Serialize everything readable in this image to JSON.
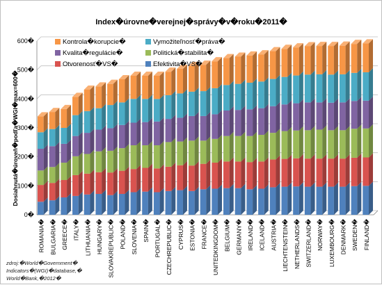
{
  "chart_data": {
    "type": "stacked-bar-3d",
    "title": "Index�úrovne�verejnej�správy�v�roku�2011�",
    "ylabel": "Dosiahnutá�úroveň�podľa�WGI�max=600�",
    "xlabel": "",
    "ylim": [
      0,
      600
    ],
    "yticks": [
      "0�",
      "100�",
      "200�",
      "300�",
      "400�",
      "500�",
      "600�"
    ],
    "ytick_values": [
      0,
      100,
      200,
      300,
      400,
      500,
      600
    ],
    "grid": true,
    "legend_position": "top-left-inside",
    "categories": [
      "ROMANIA�",
      "BULGARIA�",
      "GREECE�",
      "ITALY�",
      "LITHUANIA�",
      "HUNGARY�",
      "SLOVAKREPUBLIC�",
      "POLAND�",
      "SLOVENIA�",
      "SPAIN�",
      "PORTUGAL�",
      "CZECHREPUBLIC�",
      "CYPRUS�",
      "ESTONIA�",
      "FRANCE�",
      "UNITEDKINGDOM�",
      "BELGIUM�",
      "GERMANY�",
      "IRELAND�",
      "ICELAND�",
      "AUSTRIA�",
      "LIECHTENSTEIN�",
      "NETHERLANDS�",
      "SWITZERLAND�",
      "NORWAY�",
      "LUXEMBOURG�",
      "DENMARK�",
      "SWEDEN�",
      "FINLAND�"
    ],
    "series": [
      {
        "name": "Efektivita�VS�",
        "color": "#4f81bd",
        "values": [
          45,
          50,
          60,
          65,
          70,
          72,
          68,
          72,
          78,
          80,
          78,
          82,
          85,
          82,
          88,
          90,
          92,
          92,
          88,
          90,
          95,
          97,
          98,
          97,
          97,
          97,
          97,
          99,
          100
        ]
      },
      {
        "name": "Otvorenosť�VS�",
        "color": "#d9534f",
        "values": [
          58,
          60,
          60,
          72,
          72,
          75,
          78,
          80,
          80,
          82,
          82,
          84,
          86,
          88,
          88,
          90,
          92,
          92,
          94,
          94,
          96,
          96,
          97,
          97,
          97,
          97,
          97,
          98,
          98
        ]
      },
      {
        "name": "Politická�stabilita�",
        "color": "#9bbb59",
        "values": [
          50,
          55,
          60,
          65,
          68,
          72,
          75,
          78,
          82,
          78,
          80,
          85,
          82,
          86,
          80,
          82,
          88,
          88,
          90,
          92,
          92,
          96,
          96,
          98,
          100,
          98,
          98,
          100,
          100
        ]
      },
      {
        "name": "Kvalita�regulácie�",
        "color": "#8064a2",
        "values": [
          75,
          72,
          65,
          70,
          73,
          75,
          78,
          80,
          78,
          80,
          82,
          80,
          82,
          85,
          85,
          85,
          88,
          90,
          92,
          92,
          92,
          92,
          94,
          96,
          94,
          95,
          96,
          96,
          96
        ]
      },
      {
        "name": "Vymožiteľnosť�práva�",
        "color": "#4bacc6",
        "values": [
          57,
          59,
          55,
          72,
          75,
          74,
          80,
          78,
          82,
          80,
          78,
          82,
          84,
          84,
          86,
          90,
          88,
          90,
          92,
          92,
          94,
          95,
          96,
          96,
          97,
          97,
          97,
          97,
          98
        ]
      },
      {
        "name": "Kontrola�korupcie�",
        "color": "#f79646",
        "values": [
          55,
          59,
          65,
          63,
          74,
          75,
          73,
          80,
          80,
          80,
          80,
          81,
          85,
          89,
          91,
          93,
          93,
          94,
          94,
          94,
          96,
          97,
          97,
          98,
          98,
          99,
          99,
          100,
          100
        ]
      }
    ]
  },
  "legend": {
    "columns": [
      [
        "Kontrola�korupcie�",
        "Kvalita�regulácie�",
        "Otvorenosť�VS�"
      ],
      [
        "Vymožiteľnosť�práva�",
        "Politická�stabilita�",
        "Efektivita�VS�"
      ]
    ]
  },
  "source_text": {
    "line1": "zdroj:�World�Government�",
    "line2": "Indicators�(WGI)�database,�",
    "line3": "World�Bank,�2012�"
  }
}
